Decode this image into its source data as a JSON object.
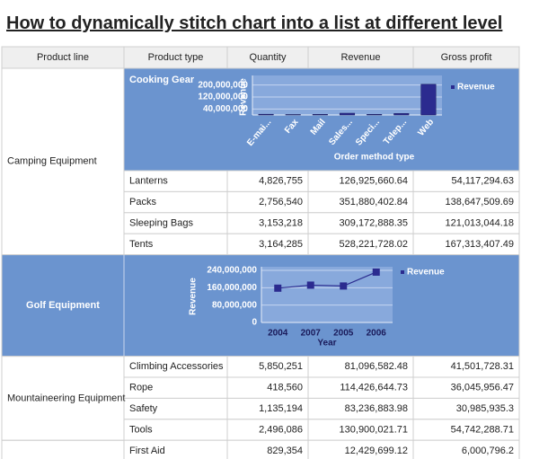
{
  "title": "How to dynamically stitch chart into a list at different level",
  "table": {
    "headers": [
      "Product line",
      "Product type",
      "Quantity",
      "Revenue",
      "Gross profit"
    ],
    "groups": [
      {
        "label": "Camping Equipment",
        "chart_label": "Cooking Gear",
        "rows": [
          [
            "Lanterns",
            "4,826,755",
            "126,925,660.64",
            "54,117,294.63"
          ],
          [
            "Packs",
            "2,756,540",
            "351,880,402.84",
            "138,647,509.69"
          ],
          [
            "Sleeping Bags",
            "3,153,218",
            "309,172,888.35",
            "121,013,044.18"
          ],
          [
            "Tents",
            "3,164,285",
            "528,221,728.02",
            "167,313,407.49"
          ]
        ]
      },
      {
        "label": "Golf Equipment"
      },
      {
        "label": "Mountaineering Equipment",
        "rows": [
          [
            "Climbing Accessories",
            "5,850,251",
            "81,096,582.48",
            "41,501,728.31"
          ],
          [
            "Rope",
            "418,560",
            "114,426,644.73",
            "36,045,956.47"
          ],
          [
            "Safety",
            "1,135,194",
            "83,236,883.98",
            "30,985,935.3"
          ],
          [
            "Tools",
            "2,496,086",
            "130,900,021.71",
            "54,742,288.71"
          ]
        ]
      },
      {
        "label": null,
        "rows": [
          [
            "First Aid",
            "829,354",
            "12,429,699.12",
            "6,000,796.2"
          ]
        ]
      }
    ]
  },
  "chart_data": [
    {
      "type": "bar",
      "x_label": "Order method type",
      "y_label": "Revenue",
      "categories": [
        "E-mai...",
        "Fax",
        "Mail",
        "Sales...",
        "Speci...",
        "Telep...",
        "Web"
      ],
      "series": [
        {
          "name": "Revenue",
          "color": "#2b2b8f",
          "values": [
            5000000,
            3000000,
            4000000,
            12000000,
            4000000,
            10000000,
            205000000
          ]
        }
      ],
      "ylim": [
        0,
        240000000
      ],
      "yticks": [
        {
          "value": 40000000,
          "label": "40,000,000"
        },
        {
          "value": 120000000,
          "label": "120,000,000"
        },
        {
          "value": 200000000,
          "label": "200,000,000"
        }
      ],
      "grid": true,
      "legend": "right"
    },
    {
      "type": "line",
      "x_label": "Year",
      "y_label": "Revenue",
      "categories": [
        "2004",
        "2007",
        "2005",
        "2006"
      ],
      "series": [
        {
          "name": "Revenue",
          "color": "#2b2b8f",
          "values": [
            158000000,
            172000000,
            168000000,
            232000000
          ]
        }
      ],
      "ylim": [
        0,
        240000000
      ],
      "yticks": [
        0,
        {
          "value": 80000000,
          "label": "80,000,000"
        },
        {
          "value": 160000000,
          "label": "160,000,000"
        },
        {
          "value": 240000000,
          "label": "240,000,000"
        }
      ],
      "grid": true,
      "legend": "right"
    }
  ]
}
